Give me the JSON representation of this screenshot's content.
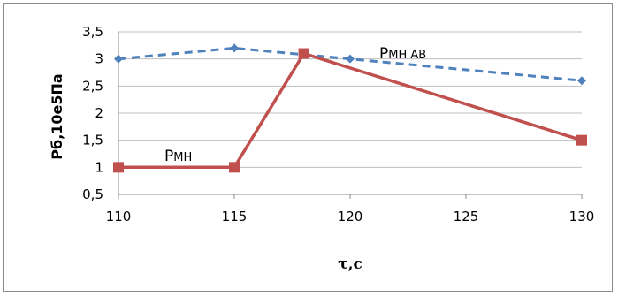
{
  "chart_data": {
    "type": "line",
    "ylabel": "Рб,10е5Па",
    "xlabel": "τ,с",
    "xlim": [
      110,
      130
    ],
    "ylim": [
      0.5,
      3.5
    ],
    "x_ticks": [
      110,
      115,
      120,
      125,
      130
    ],
    "y_ticks": [
      "0,5",
      "1",
      "1,5",
      "2",
      "2,5",
      "3",
      "3,5"
    ],
    "y_tick_values": [
      0.5,
      1,
      1.5,
      2,
      2.5,
      3,
      3.5
    ],
    "grid": "horizontal",
    "series": [
      {
        "name": "Рмн ав",
        "style": "dashed",
        "marker": "diamond",
        "color": "#4f81bd",
        "x": [
          110,
          115,
          118,
          120,
          130
        ],
        "y": [
          3.0,
          3.2,
          3.08,
          3.0,
          2.6
        ]
      },
      {
        "name": "Рмн",
        "style": "solid",
        "marker": "square",
        "color": "#c0504d",
        "x": [
          110,
          115,
          118,
          130
        ],
        "y": [
          1.0,
          1.0,
          3.1,
          1.5
        ]
      }
    ],
    "annotations": [
      {
        "main": "Р",
        "sub": "МН АВ",
        "series": 0
      },
      {
        "main": "Р",
        "sub": "МН",
        "series": 1
      }
    ]
  }
}
